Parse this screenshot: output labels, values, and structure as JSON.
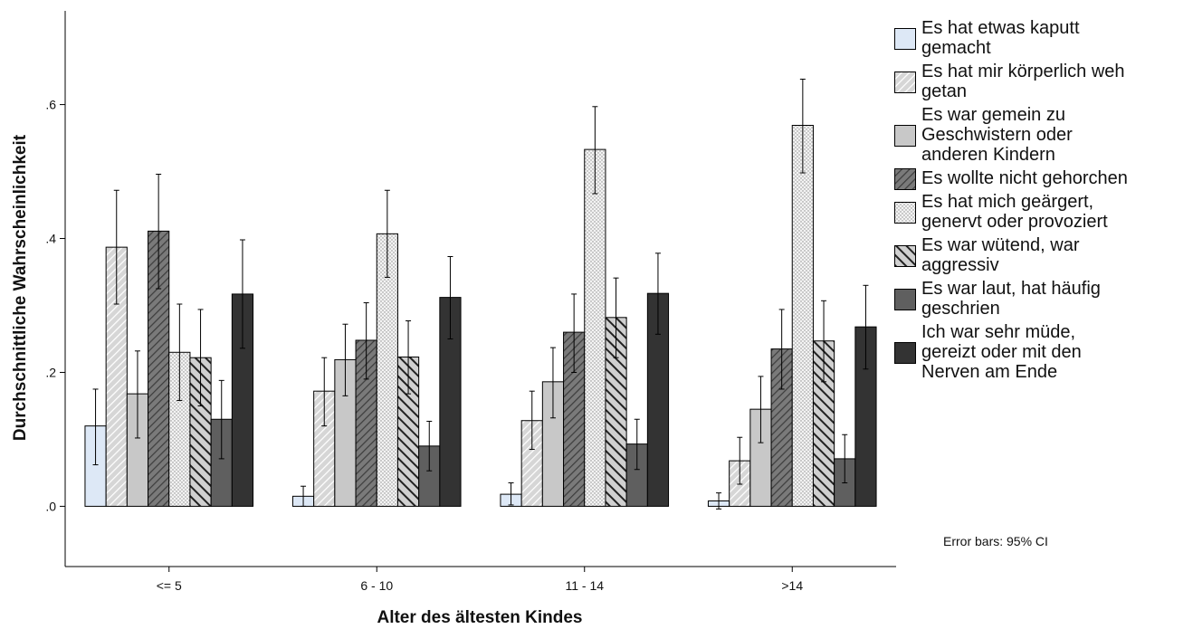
{
  "chart_data": {
    "type": "bar",
    "xlabel": "Alter des ältesten Kindes",
    "ylabel": "Durchschnittliche Wahrscheinlichkeit",
    "ylim": [
      -0.09,
      0.74
    ],
    "yticks": [
      0.0,
      0.2,
      0.4,
      0.6
    ],
    "ytick_labels": [
      ".0",
      ".2",
      ".4",
      ".6"
    ],
    "categories": [
      "<= 5",
      "6 - 10",
      "11 - 14",
      ">14"
    ],
    "error_note": "Error bars: 95% CI",
    "series": [
      {
        "name": "Es hat etwas kaputt\ngemacht",
        "fill": "#dde8f6",
        "pattern": "solid",
        "values": [
          0.12,
          0.015,
          0.018,
          0.008
        ],
        "ci_low": [
          0.062,
          0.0,
          0.002,
          -0.004
        ],
        "ci_high": [
          0.175,
          0.03,
          0.035,
          0.02
        ]
      },
      {
        "name": "Es hat mir körperlich weh\ngetan",
        "fill": "#d4d4d4",
        "pattern": "diag-light",
        "values": [
          0.387,
          0.172,
          0.128,
          0.068
        ],
        "ci_low": [
          0.302,
          0.12,
          0.085,
          0.033
        ],
        "ci_high": [
          0.472,
          0.222,
          0.172,
          0.103
        ]
      },
      {
        "name": "Es war gemein zu\nGeschwistern oder\nanderen Kindern",
        "fill": "#c8c8c8",
        "pattern": "solid",
        "values": [
          0.168,
          0.219,
          0.186,
          0.145
        ],
        "ci_low": [
          0.102,
          0.165,
          0.132,
          0.095
        ],
        "ci_high": [
          0.232,
          0.272,
          0.237,
          0.194
        ]
      },
      {
        "name": "Es wollte nicht gehorchen",
        "fill": "#737373",
        "pattern": "diag-dark",
        "values": [
          0.411,
          0.248,
          0.26,
          0.235
        ],
        "ci_low": [
          0.325,
          0.19,
          0.2,
          0.175
        ],
        "ci_high": [
          0.496,
          0.304,
          0.317,
          0.294
        ]
      },
      {
        "name": "Es hat mich geärgert,\ngenervt oder provoziert",
        "fill": "#ececec",
        "pattern": "dots",
        "values": [
          0.23,
          0.407,
          0.533,
          0.569
        ],
        "ci_low": [
          0.158,
          0.342,
          0.467,
          0.498
        ],
        "ci_high": [
          0.302,
          0.472,
          0.597,
          0.638
        ]
      },
      {
        "name": "Es war wütend, war\naggressiv",
        "fill": "#dcdcdc",
        "pattern": "anti-diag",
        "values": [
          0.222,
          0.223,
          0.282,
          0.247
        ],
        "ci_low": [
          0.15,
          0.168,
          0.222,
          0.186
        ],
        "ci_high": [
          0.294,
          0.277,
          0.341,
          0.307
        ]
      },
      {
        "name": "Es war laut, hat häufig\ngeschrien",
        "fill": "#5f5f5f",
        "pattern": "solid",
        "values": [
          0.13,
          0.09,
          0.093,
          0.071
        ],
        "ci_low": [
          0.071,
          0.053,
          0.055,
          0.035
        ],
        "ci_high": [
          0.188,
          0.127,
          0.13,
          0.107
        ]
      },
      {
        "name": " Ich war sehr müde,\ngereizt oder mit den\nNerven am Ende",
        "fill": "#333333",
        "pattern": "solid",
        "values": [
          0.317,
          0.312,
          0.318,
          0.268
        ],
        "ci_low": [
          0.236,
          0.25,
          0.257,
          0.205
        ],
        "ci_high": [
          0.398,
          0.373,
          0.378,
          0.33
        ]
      }
    ]
  }
}
